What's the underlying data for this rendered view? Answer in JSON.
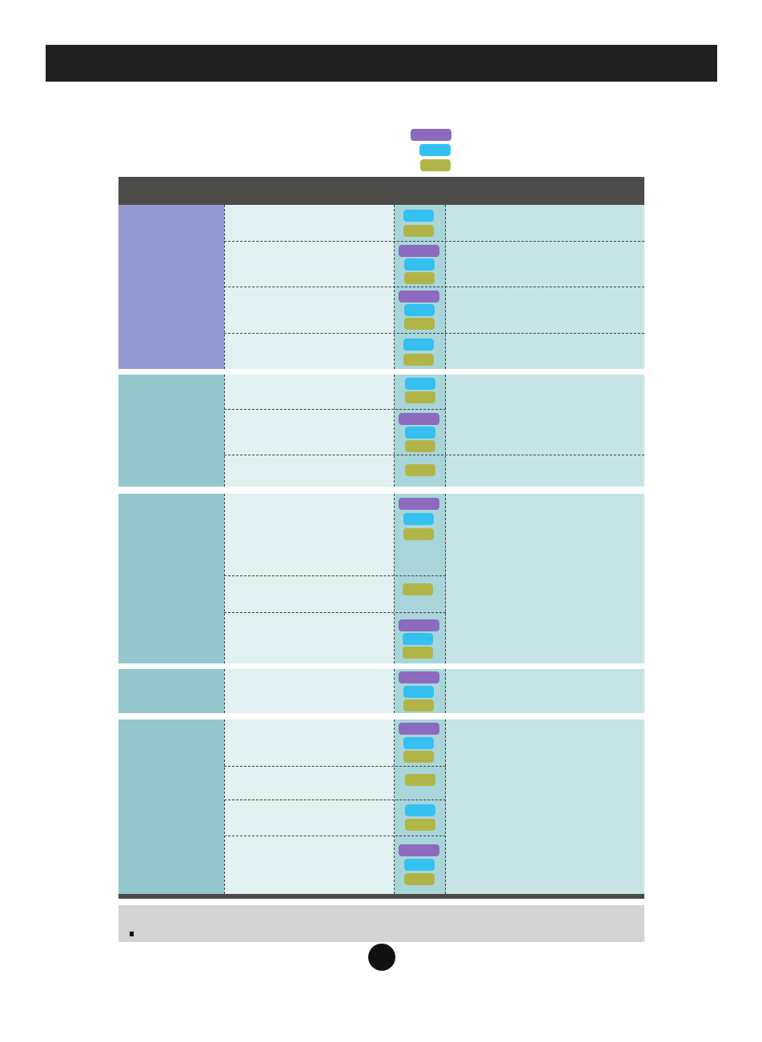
{
  "header": {
    "title": ""
  },
  "legend": {
    "colors": {
      "purple": "#8c6bbf",
      "blue": "#34c0f1",
      "olive": "#b1b548"
    }
  },
  "table": {
    "header_color": "#4d4b48",
    "groups": [
      {
        "category": "",
        "color": "#9399d1",
        "rows": [
          {
            "indicators": [
              "blue",
              "olive"
            ]
          },
          {
            "indicators": [
              "purple",
              "blue",
              "olive"
            ]
          },
          {
            "indicators": [
              "purple",
              "blue",
              "olive"
            ]
          },
          {
            "indicators": [
              "blue",
              "olive"
            ]
          }
        ]
      },
      {
        "category": "",
        "color": "#94c8cc",
        "rows": [
          {
            "indicators": [
              "blue",
              "olive"
            ]
          },
          {
            "indicators": [
              "purple",
              "blue",
              "olive"
            ]
          },
          {
            "indicators": [
              "olive"
            ]
          }
        ]
      },
      {
        "category": "",
        "color": "#94c8cc",
        "rows": [
          {
            "indicators": [
              "purple",
              "blue",
              "olive"
            ]
          },
          {
            "indicators": [
              "olive"
            ]
          },
          {
            "indicators": [
              "purple",
              "blue",
              "olive"
            ]
          }
        ]
      },
      {
        "category": "",
        "color": "#94c8cc",
        "rows": [
          {
            "indicators": [
              "purple",
              "blue",
              "olive"
            ]
          }
        ]
      },
      {
        "category": "",
        "color": "#94c8cc",
        "rows": [
          {
            "indicators": [
              "purple",
              "blue",
              "olive"
            ]
          },
          {
            "indicators": [
              "olive"
            ]
          },
          {
            "indicators": [
              "blue",
              "olive"
            ]
          },
          {
            "indicators": [
              "purple",
              "blue",
              "olive"
            ]
          }
        ]
      }
    ]
  },
  "note": {
    "text": ""
  },
  "page_number": ""
}
